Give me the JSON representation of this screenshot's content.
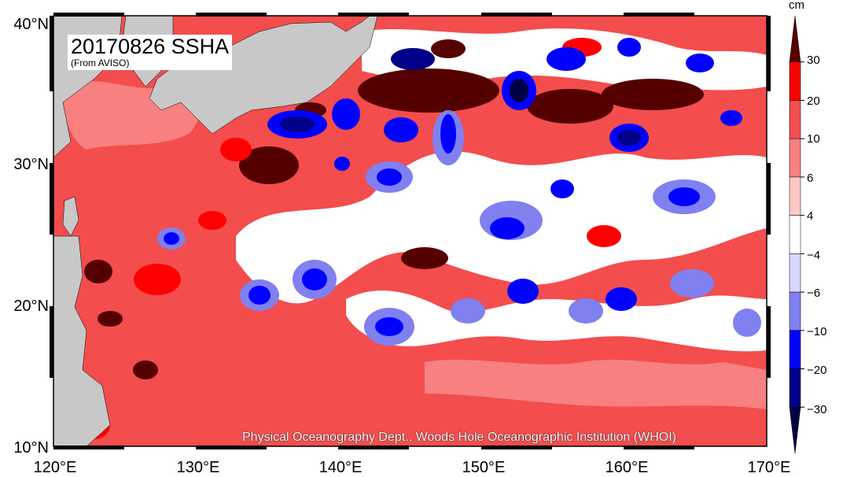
{
  "title": "20170826 SSHA",
  "subtitle": "(From AVISO)",
  "credit": "Physical Oceanography Dept., Woods Hole Oceanographic Institution (WHOI)",
  "lat_labels": [
    "40°N",
    "30°N",
    "20°N",
    "10°N"
  ],
  "lon_labels": [
    "120°E",
    "130°E",
    "140°E",
    "150°E",
    "160°E",
    "170°E"
  ],
  "colorbar": {
    "unit": "cm",
    "tick_labels": [
      "30",
      "20",
      "10",
      "6",
      "4",
      "−4",
      "−6",
      "−10",
      "−20",
      "−30"
    ],
    "colors": [
      "#550000",
      "#ff0000",
      "#f34d4d",
      "#f88080",
      "#fcc8c8",
      "#ffffff",
      "#d8d8ff",
      "#8080f0",
      "#0000ff",
      "#000088",
      "#000044"
    ]
  },
  "land_color": "#c8c8c8",
  "ocean_base_color": "#f34d4d"
}
